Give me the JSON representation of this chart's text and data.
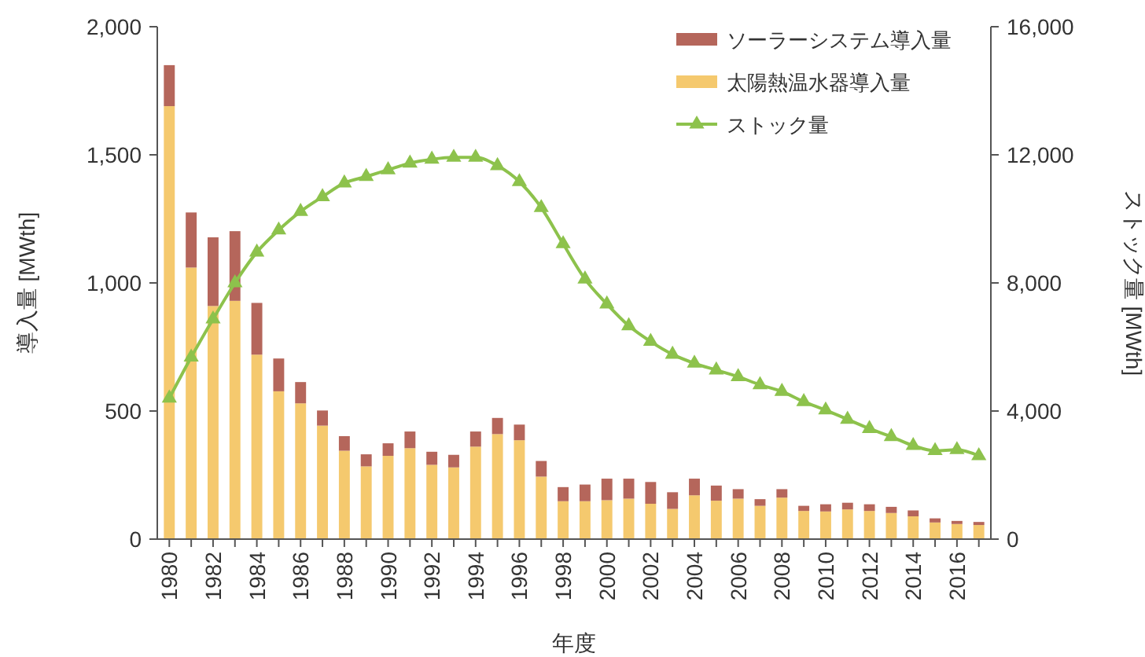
{
  "chart_data": {
    "type": "bar",
    "stacked": true,
    "xlabel": "年度",
    "ylabel": "導入量 [MWth]",
    "y2label": "ストック量 [MWth]",
    "categories": [
      "1980",
      null,
      "1982",
      null,
      "1984",
      null,
      "1986",
      null,
      "1988",
      null,
      "1990",
      null,
      "1992",
      null,
      "1994",
      null,
      "1996",
      null,
      "1998",
      null,
      "2000",
      null,
      "2002",
      null,
      "2004",
      null,
      "2006",
      null,
      "2008",
      null,
      "2010",
      null,
      "2012",
      null,
      "2014",
      null,
      "2016",
      null
    ],
    "series": [
      {
        "name": "太陽熱温水器導入量",
        "color": "#f5c96e",
        "values": [
          1690,
          1060,
          910,
          930,
          720,
          577,
          530,
          443,
          345,
          284,
          325,
          355,
          290,
          280,
          361,
          410,
          386,
          244,
          148,
          148,
          152,
          158,
          138,
          118,
          171,
          150,
          158,
          130,
          162,
          110,
          108,
          116,
          110,
          102,
          89,
          65,
          59,
          55
        ]
      },
      {
        "name": "ソーラーシステム導入量",
        "color": "#b5665b",
        "values": [
          160,
          215,
          268,
          272,
          202,
          128,
          83,
          59,
          57,
          47,
          49,
          65,
          51,
          49,
          59,
          63,
          61,
          61,
          55,
          65,
          84,
          78,
          85,
          65,
          65,
          59,
          37,
          26,
          33,
          20,
          28,
          26,
          26,
          24,
          23,
          16,
          12,
          12
        ]
      },
      {
        "name": "ストック量",
        "type": "line",
        "axis": "y2",
        "color": "#8dc24c",
        "marker": "triangle",
        "line_style": "solid",
        "values": [
          4400,
          5680,
          6870,
          8000,
          8960,
          9650,
          10230,
          10690,
          11120,
          11320,
          11530,
          11740,
          11860,
          11920,
          11920,
          11660,
          11160,
          10350,
          9220,
          8120,
          7340,
          6660,
          6170,
          5770,
          5490,
          5280,
          5070,
          4820,
          4610,
          4290,
          4030,
          3740,
          3450,
          3200,
          2920,
          2760,
          2790,
          2600
        ]
      }
    ],
    "ylim": [
      0,
      2000
    ],
    "yticks": [
      0,
      500,
      {
        "value": 1000,
        "label": "1,000"
      },
      {
        "value": 1500,
        "label": "1,500"
      },
      {
        "value": 2000,
        "label": "2,000"
      }
    ],
    "y2lim": [
      0,
      16000
    ],
    "y2ticks": [
      0,
      {
        "value": 4000,
        "label": "4,000"
      },
      {
        "value": 8000,
        "label": "8,000"
      },
      {
        "value": 12000,
        "label": "12,000"
      },
      {
        "value": 16000,
        "label": "16,000"
      }
    ],
    "legend": "top right",
    "grid": false
  }
}
